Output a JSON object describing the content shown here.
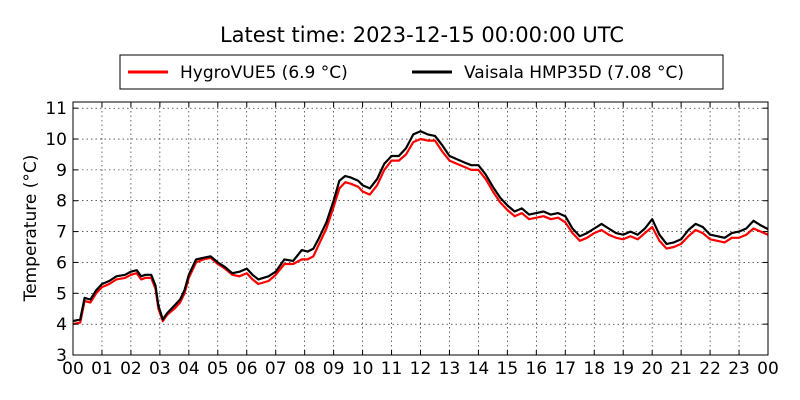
{
  "chart_data": {
    "type": "line",
    "title": "Latest time: 2023-12-15 00:00:00 UTC",
    "xlabel": "",
    "ylabel": "Temperature (°C)",
    "xlim": [
      0,
      24
    ],
    "ylim": [
      3,
      11.2
    ],
    "x_ticks": [
      "00",
      "01",
      "02",
      "03",
      "04",
      "05",
      "06",
      "07",
      "08",
      "09",
      "10",
      "11",
      "12",
      "13",
      "14",
      "15",
      "16",
      "17",
      "18",
      "19",
      "20",
      "21",
      "22",
      "23",
      "00"
    ],
    "y_ticks": [
      "3",
      "4",
      "5",
      "6",
      "7",
      "8",
      "9",
      "10",
      "11"
    ],
    "grid": true,
    "legend_position": "top-center",
    "series": [
      {
        "name": "HygroVUE5 (6.9 °C)",
        "color": "#ff0000",
        "points": [
          [
            0,
            4.0
          ],
          [
            0.25,
            4.05
          ],
          [
            0.4,
            4.75
          ],
          [
            0.6,
            4.7
          ],
          [
            0.8,
            5.0
          ],
          [
            1.0,
            5.2
          ],
          [
            1.25,
            5.3
          ],
          [
            1.5,
            5.45
          ],
          [
            1.8,
            5.5
          ],
          [
            2.0,
            5.6
          ],
          [
            2.2,
            5.65
          ],
          [
            2.35,
            5.45
          ],
          [
            2.5,
            5.5
          ],
          [
            2.7,
            5.5
          ],
          [
            2.85,
            5.15
          ],
          [
            2.95,
            4.5
          ],
          [
            3.1,
            4.1
          ],
          [
            3.25,
            4.3
          ],
          [
            3.5,
            4.5
          ],
          [
            3.7,
            4.7
          ],
          [
            3.85,
            5.0
          ],
          [
            4.0,
            5.5
          ],
          [
            4.25,
            6.0
          ],
          [
            4.5,
            6.1
          ],
          [
            4.75,
            6.15
          ],
          [
            5.0,
            5.95
          ],
          [
            5.25,
            5.8
          ],
          [
            5.5,
            5.6
          ],
          [
            5.75,
            5.55
          ],
          [
            6.0,
            5.65
          ],
          [
            6.2,
            5.45
          ],
          [
            6.4,
            5.3
          ],
          [
            6.75,
            5.4
          ],
          [
            7.0,
            5.6
          ],
          [
            7.3,
            5.95
          ],
          [
            7.6,
            5.95
          ],
          [
            7.9,
            6.1
          ],
          [
            8.1,
            6.1
          ],
          [
            8.3,
            6.2
          ],
          [
            8.5,
            6.6
          ],
          [
            8.75,
            7.1
          ],
          [
            9.0,
            7.8
          ],
          [
            9.2,
            8.4
          ],
          [
            9.4,
            8.6
          ],
          [
            9.6,
            8.55
          ],
          [
            9.85,
            8.45
          ],
          [
            10.0,
            8.3
          ],
          [
            10.25,
            8.2
          ],
          [
            10.5,
            8.5
          ],
          [
            10.75,
            9.0
          ],
          [
            11.0,
            9.3
          ],
          [
            11.25,
            9.3
          ],
          [
            11.5,
            9.5
          ],
          [
            11.75,
            9.9
          ],
          [
            12.0,
            10.0
          ],
          [
            12.25,
            9.95
          ],
          [
            12.5,
            9.95
          ],
          [
            12.75,
            9.6
          ],
          [
            13.0,
            9.3
          ],
          [
            13.25,
            9.2
          ],
          [
            13.5,
            9.1
          ],
          [
            13.75,
            9.0
          ],
          [
            14.0,
            9.0
          ],
          [
            14.25,
            8.7
          ],
          [
            14.5,
            8.3
          ],
          [
            14.75,
            7.95
          ],
          [
            15.0,
            7.7
          ],
          [
            15.25,
            7.5
          ],
          [
            15.5,
            7.6
          ],
          [
            15.75,
            7.4
          ],
          [
            16.0,
            7.45
          ],
          [
            16.25,
            7.5
          ],
          [
            16.5,
            7.4
          ],
          [
            16.75,
            7.45
          ],
          [
            17.0,
            7.3
          ],
          [
            17.25,
            6.95
          ],
          [
            17.5,
            6.7
          ],
          [
            17.75,
            6.8
          ],
          [
            18.0,
            6.95
          ],
          [
            18.25,
            7.05
          ],
          [
            18.5,
            6.9
          ],
          [
            18.75,
            6.8
          ],
          [
            19.0,
            6.75
          ],
          [
            19.25,
            6.85
          ],
          [
            19.5,
            6.75
          ],
          [
            19.75,
            6.95
          ],
          [
            20.0,
            7.15
          ],
          [
            20.25,
            6.7
          ],
          [
            20.5,
            6.45
          ],
          [
            20.75,
            6.5
          ],
          [
            21.0,
            6.6
          ],
          [
            21.25,
            6.85
          ],
          [
            21.5,
            7.05
          ],
          [
            21.75,
            6.95
          ],
          [
            22.0,
            6.75
          ],
          [
            22.25,
            6.7
          ],
          [
            22.5,
            6.65
          ],
          [
            22.75,
            6.8
          ],
          [
            23.0,
            6.8
          ],
          [
            23.25,
            6.9
          ],
          [
            23.5,
            7.1
          ],
          [
            23.75,
            7.0
          ],
          [
            24.0,
            6.9
          ]
        ]
      },
      {
        "name": "Vaisala HMP35D (7.08 °C)",
        "color": "#000000",
        "points": [
          [
            0,
            4.1
          ],
          [
            0.25,
            4.15
          ],
          [
            0.4,
            4.85
          ],
          [
            0.6,
            4.8
          ],
          [
            0.8,
            5.1
          ],
          [
            1.0,
            5.3
          ],
          [
            1.25,
            5.4
          ],
          [
            1.5,
            5.55
          ],
          [
            1.8,
            5.6
          ],
          [
            2.0,
            5.7
          ],
          [
            2.2,
            5.75
          ],
          [
            2.35,
            5.55
          ],
          [
            2.5,
            5.6
          ],
          [
            2.7,
            5.6
          ],
          [
            2.85,
            5.25
          ],
          [
            2.95,
            4.6
          ],
          [
            3.1,
            4.15
          ],
          [
            3.25,
            4.35
          ],
          [
            3.5,
            4.6
          ],
          [
            3.7,
            4.8
          ],
          [
            3.85,
            5.1
          ],
          [
            4.0,
            5.6
          ],
          [
            4.25,
            6.1
          ],
          [
            4.5,
            6.15
          ],
          [
            4.75,
            6.2
          ],
          [
            5.0,
            6.0
          ],
          [
            5.25,
            5.85
          ],
          [
            5.5,
            5.65
          ],
          [
            5.75,
            5.7
          ],
          [
            6.0,
            5.8
          ],
          [
            6.2,
            5.6
          ],
          [
            6.4,
            5.45
          ],
          [
            6.75,
            5.55
          ],
          [
            7.0,
            5.7
          ],
          [
            7.3,
            6.1
          ],
          [
            7.6,
            6.05
          ],
          [
            7.9,
            6.4
          ],
          [
            8.1,
            6.35
          ],
          [
            8.3,
            6.45
          ],
          [
            8.5,
            6.8
          ],
          [
            8.75,
            7.3
          ],
          [
            9.0,
            8.0
          ],
          [
            9.2,
            8.65
          ],
          [
            9.4,
            8.8
          ],
          [
            9.6,
            8.75
          ],
          [
            9.85,
            8.65
          ],
          [
            10.0,
            8.5
          ],
          [
            10.25,
            8.4
          ],
          [
            10.5,
            8.7
          ],
          [
            10.75,
            9.2
          ],
          [
            11.0,
            9.45
          ],
          [
            11.25,
            9.45
          ],
          [
            11.5,
            9.7
          ],
          [
            11.75,
            10.15
          ],
          [
            12.0,
            10.25
          ],
          [
            12.25,
            10.15
          ],
          [
            12.5,
            10.1
          ],
          [
            12.75,
            9.8
          ],
          [
            13.0,
            9.45
          ],
          [
            13.25,
            9.35
          ],
          [
            13.5,
            9.25
          ],
          [
            13.75,
            9.15
          ],
          [
            14.0,
            9.15
          ],
          [
            14.25,
            8.85
          ],
          [
            14.5,
            8.45
          ],
          [
            14.75,
            8.1
          ],
          [
            15.0,
            7.85
          ],
          [
            15.25,
            7.65
          ],
          [
            15.5,
            7.75
          ],
          [
            15.75,
            7.55
          ],
          [
            16.0,
            7.6
          ],
          [
            16.25,
            7.65
          ],
          [
            16.5,
            7.55
          ],
          [
            16.75,
            7.6
          ],
          [
            17.0,
            7.5
          ],
          [
            17.25,
            7.1
          ],
          [
            17.5,
            6.85
          ],
          [
            17.75,
            6.95
          ],
          [
            18.0,
            7.1
          ],
          [
            18.25,
            7.25
          ],
          [
            18.5,
            7.1
          ],
          [
            18.75,
            6.95
          ],
          [
            19.0,
            6.9
          ],
          [
            19.25,
            7.0
          ],
          [
            19.5,
            6.9
          ],
          [
            19.75,
            7.1
          ],
          [
            20.0,
            7.4
          ],
          [
            20.25,
            6.9
          ],
          [
            20.5,
            6.6
          ],
          [
            20.75,
            6.65
          ],
          [
            21.0,
            6.75
          ],
          [
            21.25,
            7.05
          ],
          [
            21.5,
            7.25
          ],
          [
            21.75,
            7.15
          ],
          [
            22.0,
            6.9
          ],
          [
            22.25,
            6.85
          ],
          [
            22.5,
            6.8
          ],
          [
            22.75,
            6.95
          ],
          [
            23.0,
            7.0
          ],
          [
            23.25,
            7.1
          ],
          [
            23.5,
            7.35
          ],
          [
            23.75,
            7.2
          ],
          [
            24.0,
            7.08
          ]
        ]
      }
    ]
  }
}
